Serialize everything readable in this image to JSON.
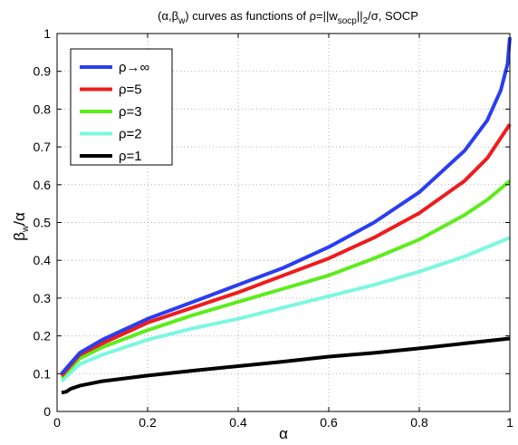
{
  "chart_data": {
    "type": "line",
    "title": {
      "t1": "(α,β",
      "t1sub": "w",
      "t2": ") curves as functions of ρ=||w",
      "t2sub": "socp",
      "t3": "||",
      "t3sub": "2",
      "t4": "/σ, SOCP"
    },
    "xlabel": "α",
    "ylabel": {
      "main": "β",
      "sub": "w",
      "tail": "/α"
    },
    "xlim": [
      0,
      1
    ],
    "ylim": [
      0,
      1
    ],
    "xticks": [
      "0",
      "0.2",
      "0.4",
      "0.6",
      "0.8",
      "1"
    ],
    "yticks": [
      "0",
      "0.1",
      "0.2",
      "0.3",
      "0.4",
      "0.5",
      "0.6",
      "0.7",
      "0.8",
      "0.9",
      "1"
    ],
    "grid": true,
    "legend_position": "top-left",
    "series": [
      {
        "name": "ρ→∞",
        "color": "#2a3ef0",
        "x": [
          0.01,
          0.05,
          0.1,
          0.2,
          0.3,
          0.4,
          0.5,
          0.6,
          0.7,
          0.8,
          0.9,
          0.95,
          0.98,
          0.995,
          1.0
        ],
        "y": [
          0.1,
          0.155,
          0.19,
          0.245,
          0.29,
          0.335,
          0.38,
          0.435,
          0.5,
          0.58,
          0.69,
          0.77,
          0.85,
          0.92,
          0.99
        ]
      },
      {
        "name": "ρ=5",
        "color": "#ee1c1c",
        "x": [
          0.01,
          0.05,
          0.1,
          0.2,
          0.3,
          0.4,
          0.5,
          0.6,
          0.7,
          0.8,
          0.9,
          0.95,
          1.0
        ],
        "y": [
          0.095,
          0.15,
          0.18,
          0.235,
          0.275,
          0.315,
          0.36,
          0.405,
          0.46,
          0.525,
          0.61,
          0.67,
          0.76
        ]
      },
      {
        "name": "ρ=3",
        "color": "#5cec1c",
        "x": [
          0.01,
          0.05,
          0.1,
          0.2,
          0.3,
          0.4,
          0.5,
          0.6,
          0.7,
          0.8,
          0.9,
          0.95,
          1.0
        ],
        "y": [
          0.09,
          0.14,
          0.17,
          0.215,
          0.255,
          0.29,
          0.325,
          0.36,
          0.405,
          0.455,
          0.52,
          0.56,
          0.61
        ]
      },
      {
        "name": "ρ=2",
        "color": "#7cf7e0",
        "x": [
          0.01,
          0.05,
          0.1,
          0.2,
          0.3,
          0.4,
          0.5,
          0.6,
          0.7,
          0.8,
          0.9,
          0.95,
          1.0
        ],
        "y": [
          0.08,
          0.125,
          0.15,
          0.19,
          0.22,
          0.245,
          0.275,
          0.305,
          0.335,
          0.37,
          0.41,
          0.435,
          0.46
        ]
      },
      {
        "name": "ρ=1",
        "color": "#000000",
        "x": [
          0.01,
          0.02,
          0.03,
          0.05,
          0.1,
          0.2,
          0.3,
          0.4,
          0.5,
          0.6,
          0.7,
          0.8,
          0.9,
          1.0
        ],
        "y": [
          0.05,
          0.052,
          0.06,
          0.068,
          0.08,
          0.095,
          0.108,
          0.12,
          0.132,
          0.145,
          0.155,
          0.167,
          0.18,
          0.193
        ]
      }
    ]
  }
}
